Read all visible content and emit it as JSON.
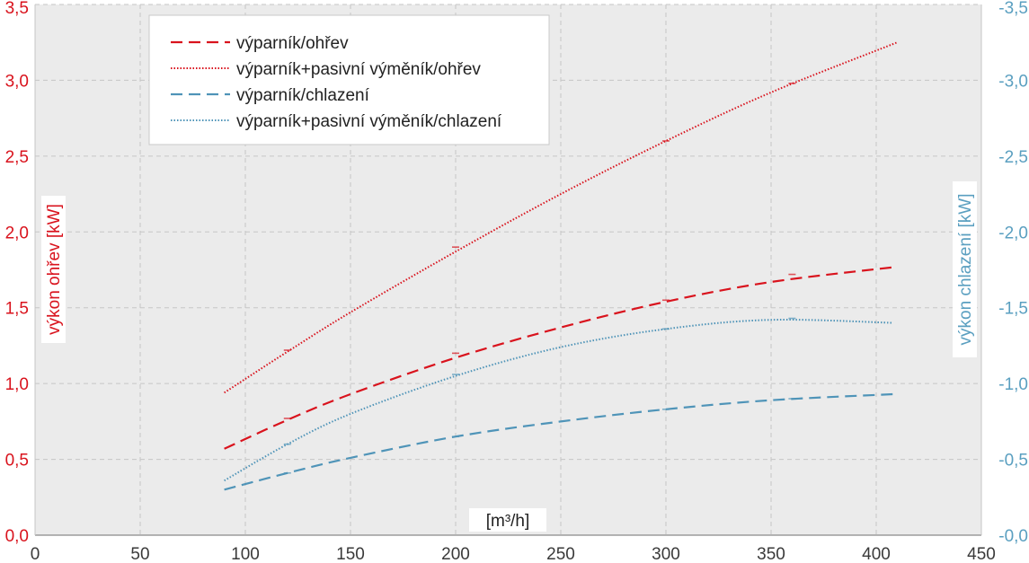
{
  "chart_data": {
    "type": "line",
    "xlabel": "[m³/h]",
    "ylabel_left": "výkon ohřev [kW]",
    "ylabel_right": "výkon chlazení [kW]",
    "xlim": [
      0,
      450
    ],
    "ylim_left": [
      0,
      3.5
    ],
    "ylim_right": [
      0,
      -3.5
    ],
    "x_ticks": [
      "0",
      "50",
      "100",
      "150",
      "200",
      "250",
      "300",
      "350",
      "400",
      "450"
    ],
    "y_left_ticks": [
      "0,0",
      "0,5",
      "1,0",
      "1,5",
      "2,0",
      "2,5",
      "3,0",
      "3,5"
    ],
    "y_right_ticks": [
      "-0,0",
      "-0,5",
      "-1,0",
      "-1,5",
      "-2,0",
      "-2,5",
      "-3,0",
      "-3,5"
    ],
    "grid": true,
    "legend_position": "top-left",
    "series": [
      {
        "name": "výparník/ohřev",
        "axis": "left",
        "color": "#d9131d",
        "style": "dashed",
        "x": [
          90,
          120,
          150,
          200,
          250,
          300,
          350,
          410
        ],
        "y": [
          0.57,
          0.76,
          0.93,
          1.17,
          1.37,
          1.54,
          1.67,
          1.77
        ],
        "markers": [
          [
            120,
            0.77
          ],
          [
            200,
            1.2
          ],
          [
            300,
            1.55
          ],
          [
            360,
            1.72
          ]
        ]
      },
      {
        "name": "výparník+pasivní výměník/ohřev",
        "axis": "left",
        "color": "#d9131d",
        "style": "dotted",
        "x": [
          90,
          120,
          150,
          200,
          250,
          300,
          350,
          410
        ],
        "y": [
          0.94,
          1.21,
          1.47,
          1.87,
          2.25,
          2.6,
          2.92,
          3.25
        ],
        "markers": [
          [
            120,
            1.22
          ],
          [
            200,
            1.9
          ],
          [
            300,
            2.6
          ],
          [
            360,
            2.98
          ]
        ]
      },
      {
        "name": "výparník/chlazení",
        "axis": "right",
        "color": "#4f94b8",
        "style": "dashed",
        "x": [
          90,
          120,
          150,
          200,
          250,
          300,
          350,
          408
        ],
        "y": [
          -0.3,
          -0.41,
          -0.51,
          -0.65,
          -0.75,
          -0.83,
          -0.89,
          -0.93
        ],
        "markers": [
          [
            120,
            -0.41
          ],
          [
            200,
            -0.65
          ],
          [
            300,
            -0.83
          ],
          [
            360,
            -0.9
          ]
        ]
      },
      {
        "name": "výparník+pasivní výměník/chlazení",
        "axis": "right",
        "color": "#4f94b8",
        "style": "dotted",
        "x": [
          90,
          120,
          150,
          200,
          250,
          300,
          350,
          408
        ],
        "y": [
          -0.36,
          -0.6,
          -0.8,
          -1.05,
          -1.24,
          -1.36,
          -1.42,
          -1.4
        ],
        "markers": [
          [
            120,
            -0.6
          ],
          [
            200,
            -1.06
          ],
          [
            300,
            -1.36
          ],
          [
            360,
            -1.43
          ]
        ]
      }
    ]
  }
}
